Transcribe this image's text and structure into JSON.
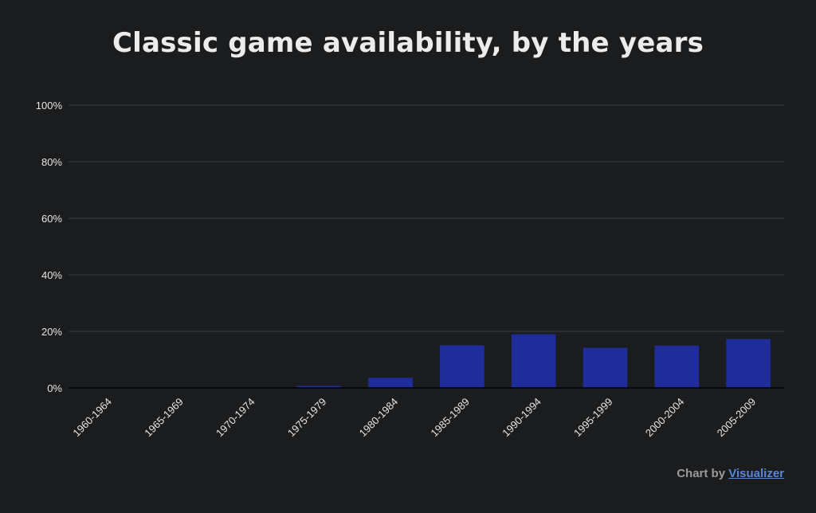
{
  "title": "Classic game availability, by the years",
  "credit": {
    "prefix": "Chart by ",
    "link_text": "Visualizer"
  },
  "colors": {
    "bar": "#1f2d9a",
    "grid": "#3a3b45",
    "baseline": "#000000"
  },
  "chart_data": {
    "type": "bar",
    "title": "Classic game availability, by the years",
    "xlabel": "",
    "ylabel": "",
    "categories": [
      "1960-1964",
      "1965-1969",
      "1970-1974",
      "1975-1979",
      "1980-1984",
      "1985-1989",
      "1990-1994",
      "1995-1999",
      "2000-2004",
      "2005-2009"
    ],
    "values": [
      0,
      0,
      0,
      0.7,
      3.6,
      15.1,
      19.0,
      14.2,
      15.0,
      17.3
    ],
    "yticks": [
      "0%",
      "20%",
      "40%",
      "60%",
      "80%",
      "100%"
    ],
    "ylim": [
      0,
      100
    ],
    "grid": true,
    "legend": "none"
  }
}
